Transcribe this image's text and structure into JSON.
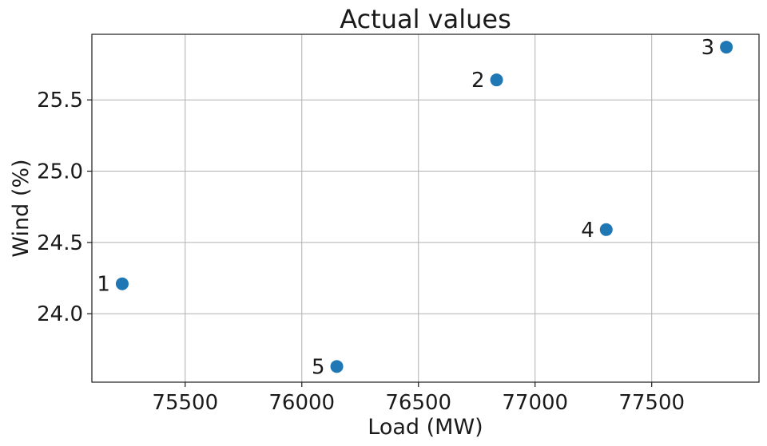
{
  "chart_data": {
    "type": "scatter",
    "title": "Actual values",
    "xlabel": "Load (MW)",
    "ylabel": "Wind (%)",
    "xlim": [
      75100,
      77960
    ],
    "ylim": [
      23.52,
      25.96
    ],
    "xticks": [
      75500,
      76000,
      76500,
      77000,
      77500
    ],
    "yticks": [
      24.0,
      24.5,
      25.0,
      25.5
    ],
    "xtick_labels": [
      "75500",
      "76000",
      "76500",
      "77000",
      "77500"
    ],
    "ytick_labels": [
      "24.0",
      "24.5",
      "25.0",
      "25.5"
    ],
    "grid": true,
    "marker_color": "#1f77b4",
    "points": [
      {
        "label": "1",
        "x": 75230,
        "y": 24.21
      },
      {
        "label": "2",
        "x": 76835,
        "y": 25.64
      },
      {
        "label": "3",
        "x": 77820,
        "y": 25.87
      },
      {
        "label": "4",
        "x": 77305,
        "y": 24.59
      },
      {
        "label": "5",
        "x": 76150,
        "y": 23.63
      }
    ]
  }
}
